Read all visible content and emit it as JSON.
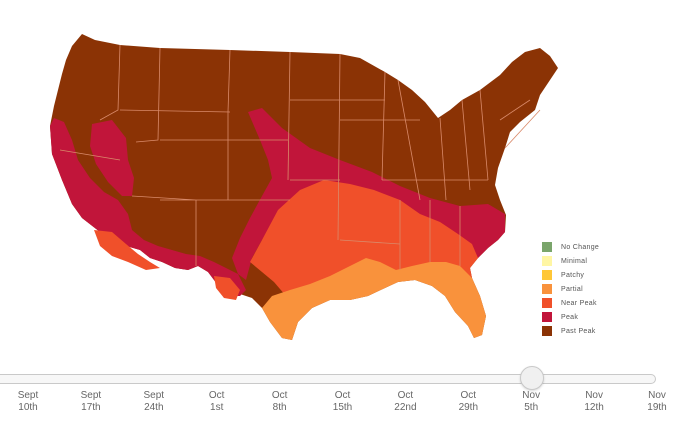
{
  "map": {
    "colors": {
      "past_peak": "#8b3305",
      "peak": "#c1153a",
      "near_peak": "#f0502a",
      "partial": "#f9923c",
      "patchy": "#ffc737",
      "minimal": "#fff6a4",
      "no_change": "#7aa56b",
      "ocean": "#ffffff",
      "border": "#d98a6a"
    }
  },
  "legend": {
    "items": [
      {
        "label": "No Change",
        "color": "#7aa56b"
      },
      {
        "label": "Minimal",
        "color": "#fff6a4"
      },
      {
        "label": "Patchy",
        "color": "#ffc737"
      },
      {
        "label": "Partial",
        "color": "#f9923c"
      },
      {
        "label": "Near Peak",
        "color": "#f0502a"
      },
      {
        "label": "Peak",
        "color": "#c1153a"
      },
      {
        "label": "Past Peak",
        "color": "#8b3305"
      }
    ]
  },
  "timeline": {
    "selected_index": 8,
    "ticks": [
      {
        "month": "Sept",
        "day": "10th"
      },
      {
        "month": "Sept",
        "day": "17th"
      },
      {
        "month": "Sept",
        "day": "24th"
      },
      {
        "month": "Oct",
        "day": "1st"
      },
      {
        "month": "Oct",
        "day": "8th"
      },
      {
        "month": "Oct",
        "day": "15th"
      },
      {
        "month": "Oct",
        "day": "22nd"
      },
      {
        "month": "Oct",
        "day": "29th"
      },
      {
        "month": "Nov",
        "day": "5th"
      },
      {
        "month": "Nov",
        "day": "12th"
      },
      {
        "month": "Nov",
        "day": "19th"
      }
    ]
  }
}
